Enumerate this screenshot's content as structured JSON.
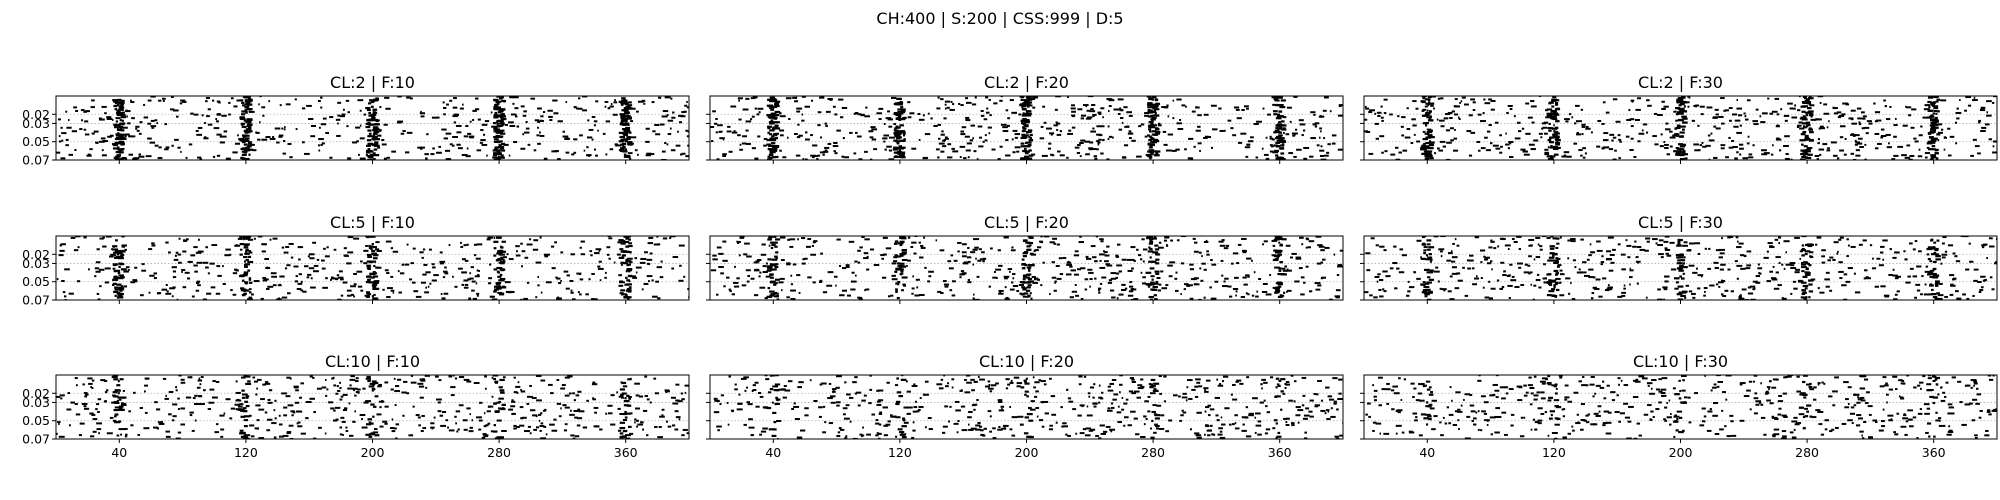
{
  "figure": {
    "title": "CH:400 | S:200 | CSS:999 | D:5"
  },
  "chart_data": {
    "type": "scatter",
    "rows": 3,
    "cols": 3,
    "shared_x_axis": {
      "ticks": [
        40,
        120,
        200,
        280,
        360
      ],
      "xlim": [
        0,
        400
      ],
      "tick_labels_on_bottom_row_only": true
    },
    "shared_y_axis": {
      "ticks": [
        0.02,
        0.03,
        0.05,
        0.07
      ],
      "tick_labels": [
        "0.02",
        "0.03",
        "0.05",
        "0.07"
      ],
      "ylim": [
        0.0,
        0.07
      ],
      "inverted": true,
      "tick_labels_on_first_column_only": true
    },
    "grid": "horizontal dotted at y ticks",
    "marker": "short black horizontal dashes",
    "vertical_bursts_at_x": [
      40,
      120,
      200,
      280,
      360
    ],
    "panels": [
      {
        "title": "CL:2 | F:10",
        "density": 0.45,
        "burst_strength": 0.95
      },
      {
        "title": "CL:2 | F:20",
        "density": 0.5,
        "burst_strength": 0.85
      },
      {
        "title": "CL:2 | F:30",
        "density": 0.5,
        "burst_strength": 0.7
      },
      {
        "title": "CL:5 | F:10",
        "density": 0.45,
        "burst_strength": 0.55
      },
      {
        "title": "CL:5 | F:20",
        "density": 0.5,
        "burst_strength": 0.45
      },
      {
        "title": "CL:5 | F:30",
        "density": 0.5,
        "burst_strength": 0.4
      },
      {
        "title": "CL:10 | F:10",
        "density": 0.5,
        "burst_strength": 0.25
      },
      {
        "title": "CL:10 | F:20",
        "density": 0.5,
        "burst_strength": 0.15
      },
      {
        "title": "CL:10 | F:30",
        "density": 0.5,
        "burst_strength": 0.12
      }
    ]
  }
}
